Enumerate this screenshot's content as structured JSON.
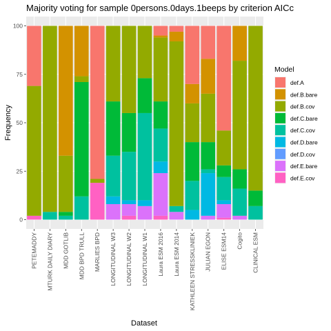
{
  "chart_data": {
    "type": "bar",
    "stacked": true,
    "title": "Majority voting for sample 0persons.0days.1beeps by criterion AICc",
    "xlabel": "Dataset",
    "ylabel": "Frequency",
    "ylim": [
      0,
      100
    ],
    "yticks": [
      0,
      25,
      50,
      75,
      100
    ],
    "grid": true,
    "legend": {
      "title": "Model",
      "position": "right"
    },
    "categories": [
      "PETEMADDY",
      "MTURK DAILY DIARY",
      "MDD GOTLIB",
      "MDD BPD TRULL",
      "MARLIES BPD",
      "LONGITUDINAL W3",
      "LONGITUDINAL W2",
      "LONGITUDINAL W1",
      "Laura ESM 2016",
      "Laura ESM 2014",
      "KATHLEEN STRESSKLINIEK",
      "JULIAN EGON",
      "ELISE ESM14",
      "Cogito",
      "CLINICAL ESM"
    ],
    "series": [
      {
        "name": "def.E.cov",
        "color": "#FF61C3",
        "values": [
          2,
          0,
          0,
          0,
          19,
          0,
          2,
          0,
          2,
          0,
          0,
          0,
          1,
          0,
          0
        ]
      },
      {
        "name": "def.E.bare",
        "color": "#DB72FB",
        "values": [
          0,
          0,
          0,
          0,
          0,
          8,
          6,
          7,
          22,
          4,
          0,
          2,
          7,
          2,
          0
        ]
      },
      {
        "name": "def.D.cov",
        "color": "#619CFF",
        "values": [
          0,
          0,
          0,
          0,
          0,
          0,
          0,
          0,
          0,
          0,
          0,
          0,
          0,
          0,
          0
        ]
      },
      {
        "name": "def.D.bare",
        "color": "#00B9E3",
        "values": [
          0,
          0,
          0,
          0,
          0,
          4,
          2,
          3,
          6,
          0,
          5,
          22,
          2,
          0,
          0
        ]
      },
      {
        "name": "def.C.cov",
        "color": "#00C19F",
        "values": [
          0,
          4,
          2,
          12,
          0,
          21,
          25,
          45,
          17,
          3,
          15,
          2,
          12,
          14,
          7
        ]
      },
      {
        "name": "def.C.bare",
        "color": "#00BA38",
        "values": [
          0,
          0,
          2,
          59,
          0,
          28,
          20,
          18,
          14,
          0,
          20,
          14,
          6,
          10,
          8
        ]
      },
      {
        "name": "def.B.cov",
        "color": "#93AA00",
        "values": [
          67,
          96,
          29,
          3,
          2,
          39,
          45,
          27,
          33,
          85,
          20,
          25,
          18,
          56,
          85
        ]
      },
      {
        "name": "def.B.bare",
        "color": "#D39200",
        "values": [
          0,
          0,
          67,
          26,
          0,
          0,
          0,
          0,
          1,
          5,
          10,
          18,
          0,
          18,
          0
        ]
      },
      {
        "name": "def.A",
        "color": "#F8766D",
        "values": [
          31,
          0,
          0,
          0,
          79,
          0,
          0,
          0,
          5,
          3,
          30,
          17,
          54,
          0,
          0
        ]
      }
    ]
  }
}
